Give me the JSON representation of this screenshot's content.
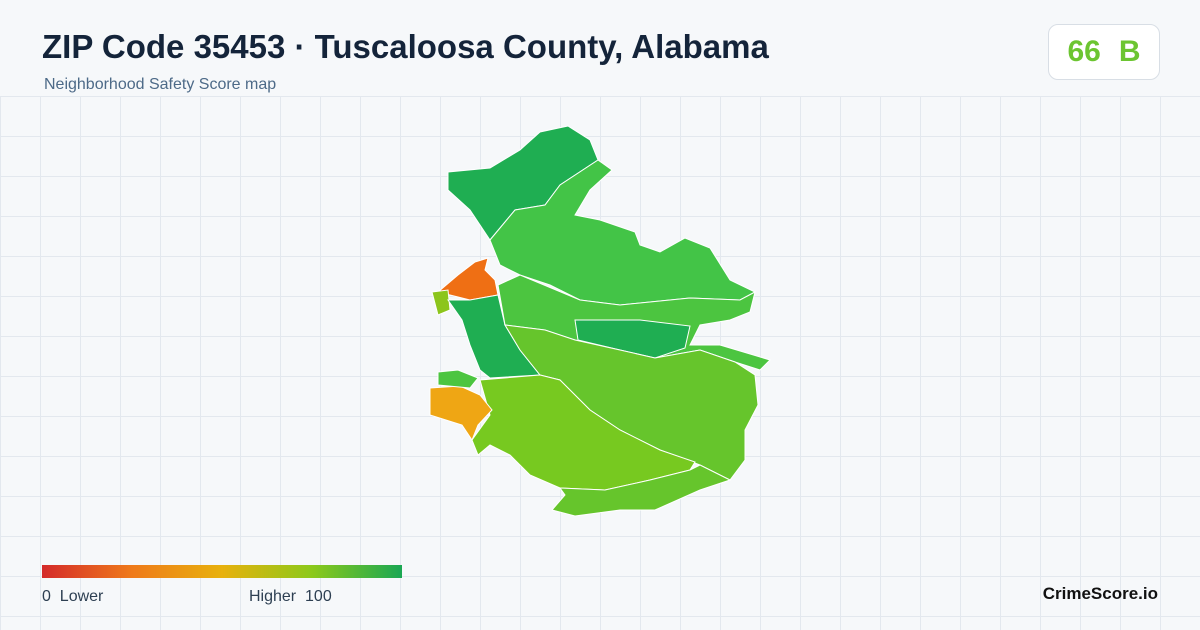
{
  "header": {
    "title": "ZIP Code 35453 · Tuscaloosa County, Alabama",
    "subtitle": "Neighborhood Safety Score map"
  },
  "score": {
    "value": 66,
    "grade": "B"
  },
  "legend": {
    "min": 0,
    "min_label": "Lower",
    "max_label": "Higher",
    "max": 100
  },
  "brand": "CrimeScore.io"
}
